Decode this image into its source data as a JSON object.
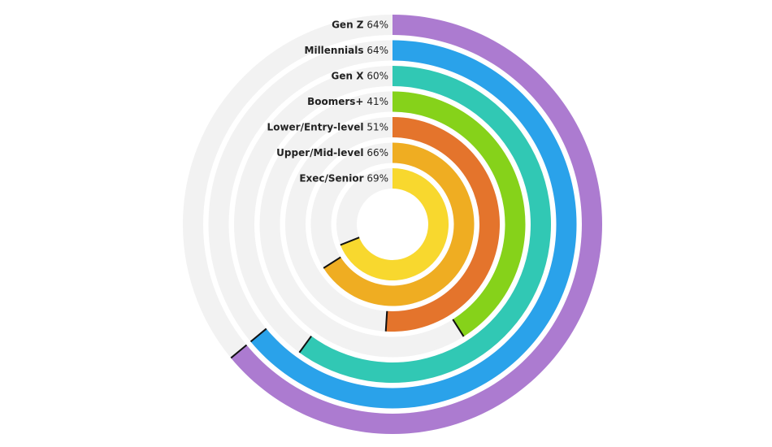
{
  "chart_data": {
    "type": "radial-bar",
    "ylim": [
      0,
      100
    ],
    "series": [
      {
        "name": "Gen Z",
        "color": "#ac7bd0",
        "values": [
          64
        ],
        "value_labels": [
          "64%"
        ]
      },
      {
        "name": "Millennials",
        "color": "#2aa2ea",
        "values": [
          64
        ],
        "value_labels": [
          "64%"
        ]
      },
      {
        "name": "Gen X",
        "color": "#31c8b4",
        "values": [
          60
        ],
        "value_labels": [
          "60%"
        ]
      },
      {
        "name": "Boomers+",
        "color": "#86d21a",
        "values": [
          41
        ],
        "value_labels": [
          "41%"
        ]
      },
      {
        "name": "Lower/Entry-level",
        "color": "#e4742c",
        "values": [
          51
        ],
        "value_labels": [
          "51%"
        ]
      },
      {
        "name": "Upper/Mid-level",
        "color": "#efad22",
        "values": [
          66
        ],
        "value_labels": [
          "66%"
        ]
      },
      {
        "name": "Exec/Senior",
        "color": "#f8d82e",
        "values": [
          69
        ],
        "value_labels": [
          "69%"
        ]
      }
    ]
  }
}
